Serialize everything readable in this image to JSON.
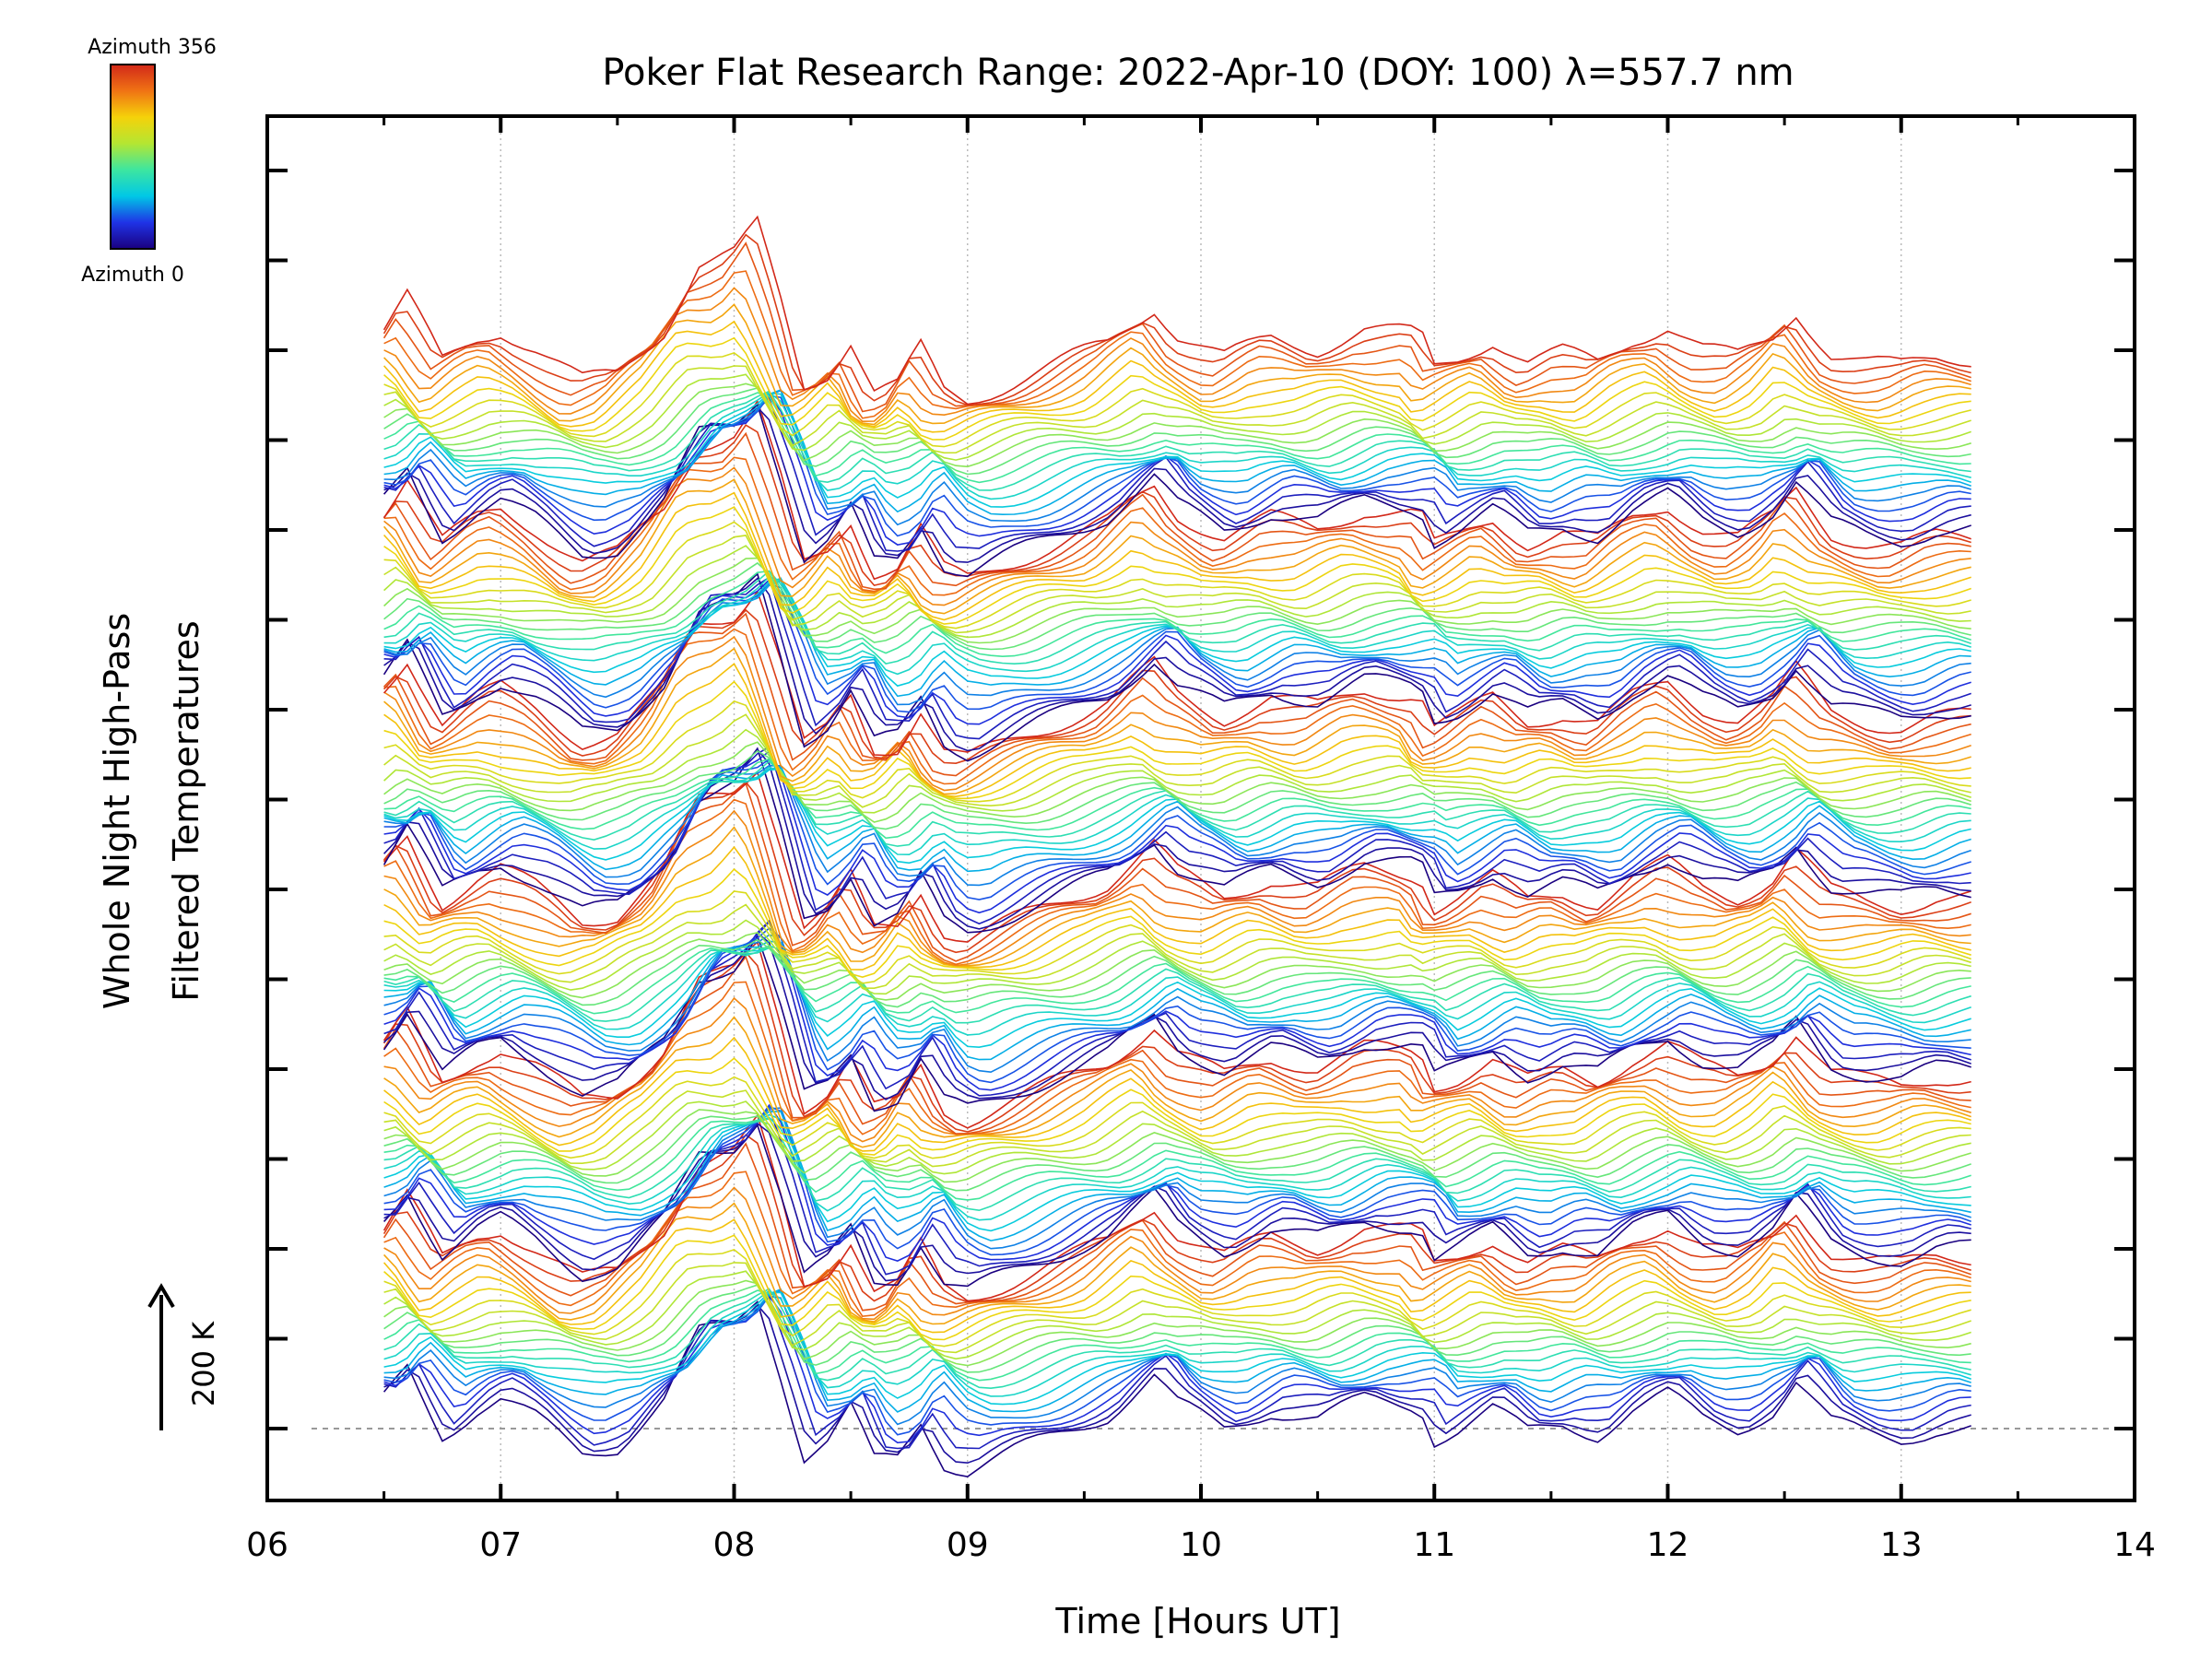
{
  "chart_data": {
    "type": "line",
    "title": "Poker Flat Research Range: 2022-Apr-10 (DOY: 100) λ=557.7 nm",
    "xlabel": "Time [Hours UT]",
    "ylabel_line1": "Whole Night High-Pass",
    "ylabel_line2": "Filtered Temperatures",
    "xlim": [
      6,
      14
    ],
    "x_tick_labels": [
      "06",
      "07",
      "08",
      "09",
      "10",
      "11",
      "12",
      "13",
      "14"
    ],
    "x_ticks": [
      6,
      7,
      8,
      9,
      10,
      11,
      12,
      13,
      14
    ],
    "data_x_range": [
      6.5,
      13.3
    ],
    "scale_bar": {
      "label": "200 K",
      "direction": "up"
    },
    "colorbar": {
      "top_label": "Azimuth 356",
      "bottom_label": "Azimuth 0",
      "colormap": "rainbow",
      "colors": [
        "#1a0080",
        "#1f33e6",
        "#00c8e6",
        "#3de6a0",
        "#b4e632",
        "#f5d20a",
        "#f07314",
        "#d22819"
      ]
    },
    "stack": {
      "blocks": 6,
      "traces_per_block": 24,
      "block_offset_K": 200,
      "baseline_dashed": true
    },
    "gridlines": "vertical dotted at each hour",
    "feature_profile": {
      "hours": [
        6.5,
        6.6,
        6.75,
        6.9,
        7.0,
        7.15,
        7.35,
        7.5,
        7.7,
        7.85,
        8.0,
        8.1,
        8.2,
        8.3,
        8.4,
        8.5,
        8.6,
        8.7,
        8.8,
        8.9,
        9.0,
        9.2,
        9.4,
        9.6,
        9.8,
        9.9,
        10.1,
        10.3,
        10.5,
        10.7,
        10.9,
        10.95,
        11.0,
        11.1,
        11.25,
        11.4,
        11.55,
        11.7,
        11.85,
        12.0,
        12.15,
        12.3,
        12.45,
        12.55,
        12.7,
        12.85,
        13.0,
        13.15,
        13.3
      ],
      "relative_K": [
        30,
        65,
        -5,
        20,
        30,
        10,
        -25,
        -18,
        30,
        100,
        110,
        140,
        60,
        -30,
        -15,
        20,
        -35,
        -30,
        10,
        -35,
        -45,
        -25,
        -5,
        15,
        55,
        25,
        0,
        20,
        10,
        30,
        25,
        20,
        -10,
        0,
        20,
        -5,
        5,
        -5,
        20,
        35,
        10,
        0,
        20,
        50,
        5,
        -5,
        -10,
        0,
        0
      ]
    }
  }
}
